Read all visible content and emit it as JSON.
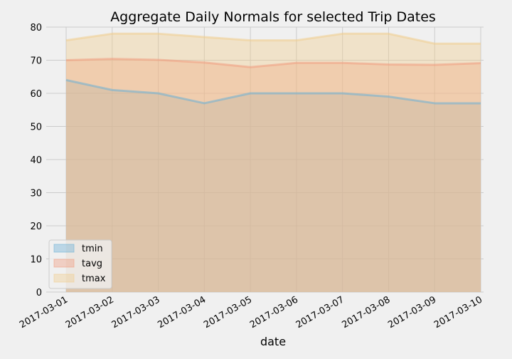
{
  "chart_data": {
    "type": "area",
    "title": "Aggregate Daily Normals for selected Trip Dates",
    "xlabel": "date",
    "ylabel": "",
    "categories": [
      "2017-03-01",
      "2017-03-02",
      "2017-03-03",
      "2017-03-04",
      "2017-03-05",
      "2017-03-06",
      "2017-03-07",
      "2017-03-08",
      "2017-03-09",
      "2017-03-10"
    ],
    "ylim": [
      0,
      80
    ],
    "yticks": [
      0,
      10,
      20,
      30,
      40,
      50,
      60,
      70,
      80
    ],
    "grid": true,
    "stacked": false,
    "legend_position": "lower-left",
    "series": [
      {
        "name": "tmin",
        "color": "#6bb0d6",
        "values": [
          64,
          61,
          60,
          57,
          60,
          60,
          60,
          59,
          57,
          57
        ]
      },
      {
        "name": "tavg",
        "color": "#f19c7f",
        "values": [
          70.0,
          70.4,
          70.1,
          69.3,
          67.9,
          69.2,
          69.2,
          68.7,
          68.6,
          69.1
        ]
      },
      {
        "name": "tmax",
        "color": "#f0cd8e",
        "values": [
          76,
          78,
          78,
          77,
          76,
          76,
          78,
          78,
          75,
          75
        ]
      }
    ]
  }
}
